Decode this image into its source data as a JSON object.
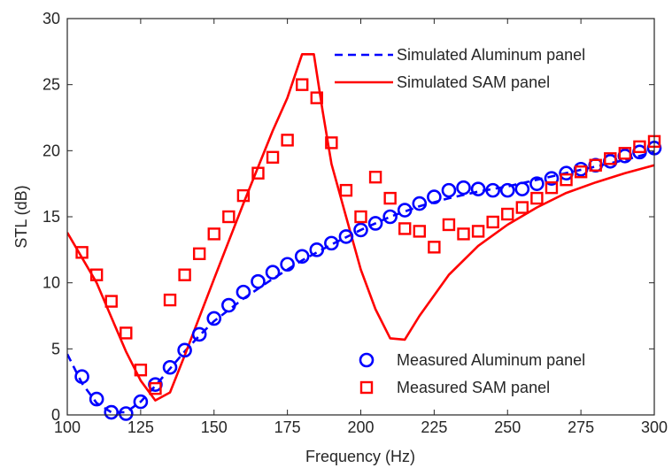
{
  "chart_data": {
    "type": "line",
    "xlabel": "Frequency (Hz)",
    "ylabel": "STL (dB)",
    "xlim": [
      100,
      300
    ],
    "ylim": [
      0,
      30
    ],
    "xticks": [
      100,
      125,
      150,
      175,
      200,
      225,
      250,
      275,
      300
    ],
    "yticks": [
      0,
      5,
      10,
      15,
      20,
      25,
      30
    ],
    "grid": false,
    "legend_placement": [
      "top-right",
      "bottom-right"
    ],
    "series": [
      {
        "name": "Simulated Aluminum panel",
        "style": "dashed-line",
        "color": "#0000ff",
        "x": [
          100,
          105,
          110,
          115,
          120,
          125,
          130,
          135,
          140,
          145,
          150,
          160,
          170,
          180,
          190,
          200,
          210,
          220,
          230,
          240,
          250,
          260,
          270,
          280,
          290,
          300
        ],
        "y": [
          4.6,
          2.4,
          0.9,
          0.2,
          0.2,
          1.0,
          2.2,
          3.5,
          4.8,
          6.0,
          7.1,
          8.8,
          10.3,
          11.7,
          12.9,
          14.0,
          15.0,
          15.8,
          16.4,
          16.9,
          17.3,
          17.8,
          18.3,
          18.8,
          19.3,
          19.9
        ]
      },
      {
        "name": "Simulated SAM panel",
        "style": "solid-line",
        "color": "#ff0000",
        "x": [
          100,
          110,
          115,
          120,
          125,
          130,
          135,
          140,
          150,
          160,
          170,
          175,
          180,
          184,
          187,
          190,
          195,
          200,
          205,
          210,
          215,
          220,
          230,
          240,
          250,
          260,
          270,
          280,
          290,
          300
        ],
        "y": [
          13.8,
          10.0,
          7.4,
          4.8,
          2.6,
          1.1,
          1.7,
          4.5,
          10.3,
          16.0,
          21.5,
          24.0,
          27.3,
          27.3,
          23.0,
          19.0,
          15.0,
          11.0,
          8.0,
          5.8,
          5.7,
          7.5,
          10.6,
          12.8,
          14.4,
          15.7,
          16.8,
          17.6,
          18.3,
          18.9
        ]
      },
      {
        "name": "Measured Aluminum panel",
        "style": "circle-marker",
        "color": "#0000ff",
        "x": [
          105,
          110,
          115,
          120,
          125,
          130,
          135,
          140,
          145,
          150,
          155,
          160,
          165,
          170,
          175,
          180,
          185,
          190,
          195,
          200,
          205,
          210,
          215,
          220,
          225,
          230,
          235,
          240,
          245,
          250,
          255,
          260,
          265,
          270,
          275,
          280,
          285,
          290,
          295,
          300
        ],
        "y": [
          2.9,
          1.2,
          0.2,
          0.1,
          1.0,
          2.3,
          3.6,
          4.9,
          6.1,
          7.3,
          8.3,
          9.3,
          10.1,
          10.8,
          11.4,
          12.0,
          12.5,
          13.0,
          13.5,
          14.0,
          14.5,
          15.0,
          15.5,
          16.0,
          16.5,
          17.0,
          17.2,
          17.1,
          17.0,
          17.0,
          17.1,
          17.5,
          17.9,
          18.3,
          18.6,
          18.9,
          19.2,
          19.6,
          19.9,
          20.2
        ]
      },
      {
        "name": "Measured SAM panel",
        "style": "square-marker",
        "color": "#ff0000",
        "x": [
          105,
          110,
          115,
          120,
          125,
          130,
          135,
          140,
          145,
          150,
          155,
          160,
          165,
          170,
          175,
          180,
          185,
          190,
          195,
          200,
          205,
          210,
          215,
          220,
          225,
          230,
          235,
          240,
          245,
          250,
          255,
          260,
          265,
          270,
          275,
          280,
          285,
          290,
          295,
          300
        ],
        "y": [
          12.3,
          10.6,
          8.6,
          6.2,
          3.4,
          2.0,
          8.7,
          10.6,
          12.2,
          13.7,
          15.0,
          16.6,
          18.3,
          19.5,
          20.8,
          25.0,
          24.0,
          20.6,
          17.0,
          15.0,
          18.0,
          16.4,
          14.1,
          13.9,
          12.7,
          14.4,
          13.7,
          13.9,
          14.6,
          15.2,
          15.7,
          16.4,
          17.2,
          17.8,
          18.4,
          18.9,
          19.4,
          19.8,
          20.3,
          20.7
        ]
      }
    ]
  }
}
